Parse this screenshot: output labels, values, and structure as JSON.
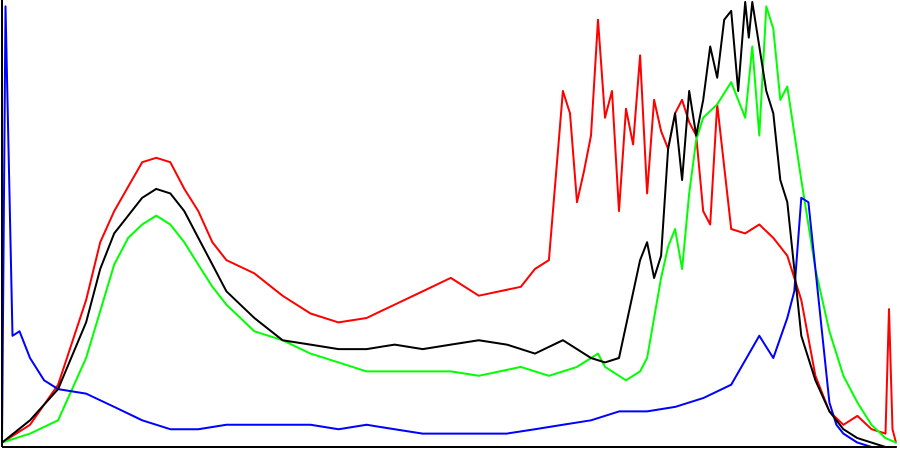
{
  "chart_data": {
    "type": "line",
    "title": "",
    "xlabel": "",
    "ylabel": "",
    "xlim": [
      0,
      255
    ],
    "ylim": [
      0,
      100
    ],
    "grid": false,
    "legend": "none",
    "series": [
      {
        "color": "#ff0000",
        "x": [
          0,
          8,
          16,
          24,
          28,
          32,
          40,
          44,
          48,
          52,
          56,
          60,
          64,
          72,
          80,
          88,
          96,
          104,
          112,
          120,
          128,
          136,
          148,
          152,
          156,
          160,
          162,
          164,
          166,
          168,
          170,
          172,
          174,
          176,
          178,
          180,
          182,
          184,
          186,
          188,
          190,
          192,
          194,
          196,
          198,
          200,
          202,
          204,
          208,
          212,
          216,
          220,
          224,
          228,
          232,
          236,
          240,
          244,
          248,
          252,
          253,
          254,
          255
        ],
        "values": [
          1,
          5,
          14,
          33,
          46,
          53,
          64,
          65,
          64,
          58,
          53,
          46,
          42,
          39,
          34,
          30,
          28,
          29,
          32,
          35,
          38,
          34,
          36,
          40,
          42,
          80,
          75,
          55,
          62,
          70,
          96,
          74,
          80,
          53,
          76,
          68,
          88,
          57,
          78,
          71,
          67,
          75,
          78,
          73,
          70,
          53,
          50,
          77,
          49,
          48,
          50,
          47,
          43,
          33,
          16,
          8,
          5,
          7,
          4,
          3,
          31,
          4,
          1
        ]
      },
      {
        "color": "#00ff00",
        "x": [
          0,
          8,
          16,
          24,
          32,
          36,
          40,
          44,
          48,
          52,
          56,
          60,
          64,
          72,
          80,
          88,
          96,
          104,
          112,
          120,
          128,
          136,
          148,
          156,
          164,
          170,
          172,
          176,
          178,
          182,
          184,
          188,
          190,
          192,
          194,
          196,
          198,
          200,
          204,
          208,
          212,
          214,
          216,
          218,
          220,
          222,
          224,
          228,
          232,
          236,
          240,
          244,
          248,
          252,
          255
        ],
        "values": [
          1,
          3,
          6,
          20,
          41,
          47,
          50,
          52,
          50,
          46,
          41,
          36,
          32,
          26,
          24,
          21,
          19,
          17,
          17,
          17,
          17,
          16,
          18,
          16,
          18,
          21,
          18,
          16,
          15,
          17,
          20,
          38,
          45,
          49,
          40,
          57,
          69,
          74,
          77,
          82,
          74,
          90,
          70,
          99,
          94,
          78,
          81,
          60,
          40,
          26,
          16,
          10,
          5,
          2,
          1
        ]
      },
      {
        "color": "#0000ff",
        "x": [
          0,
          1,
          3,
          5,
          8,
          12,
          16,
          24,
          32,
          40,
          48,
          56,
          64,
          72,
          80,
          88,
          96,
          104,
          112,
          120,
          128,
          136,
          144,
          152,
          160,
          168,
          176,
          184,
          192,
          200,
          208,
          216,
          220,
          224,
          226,
          228,
          230,
          232,
          234,
          236,
          238,
          240,
          244,
          248,
          252,
          255
        ],
        "values": [
          1,
          99,
          25,
          26,
          20,
          15,
          13,
          12,
          9,
          6,
          4,
          4,
          5,
          5,
          5,
          5,
          4,
          5,
          4,
          3,
          3,
          3,
          3,
          4,
          5,
          6,
          8,
          8,
          9,
          11,
          14,
          25,
          20,
          29,
          35,
          56,
          55,
          40,
          25,
          10,
          5,
          3,
          1,
          0,
          0,
          0
        ]
      },
      {
        "color": "#000000",
        "x": [
          0,
          8,
          16,
          24,
          28,
          32,
          40,
          44,
          48,
          52,
          56,
          60,
          64,
          72,
          80,
          88,
          96,
          104,
          112,
          120,
          128,
          136,
          144,
          152,
          160,
          168,
          172,
          176,
          182,
          184,
          186,
          188,
          190,
          192,
          194,
          196,
          198,
          200,
          202,
          204,
          206,
          208,
          210,
          212,
          213,
          214,
          216,
          218,
          220,
          222,
          224,
          226,
          228,
          232,
          236,
          240,
          244,
          248,
          252,
          255
        ],
        "values": [
          1,
          6,
          13,
          28,
          40,
          48,
          56,
          58,
          57,
          53,
          47,
          41,
          35,
          29,
          24,
          23,
          22,
          22,
          23,
          22,
          23,
          24,
          23,
          21,
          24,
          20,
          19,
          20,
          42,
          46,
          38,
          43,
          67,
          75,
          60,
          80,
          70,
          78,
          90,
          83,
          96,
          98,
          80,
          100,
          92,
          100,
          90,
          80,
          75,
          60,
          55,
          40,
          25,
          15,
          8,
          4,
          2,
          1,
          0,
          0
        ]
      }
    ]
  }
}
